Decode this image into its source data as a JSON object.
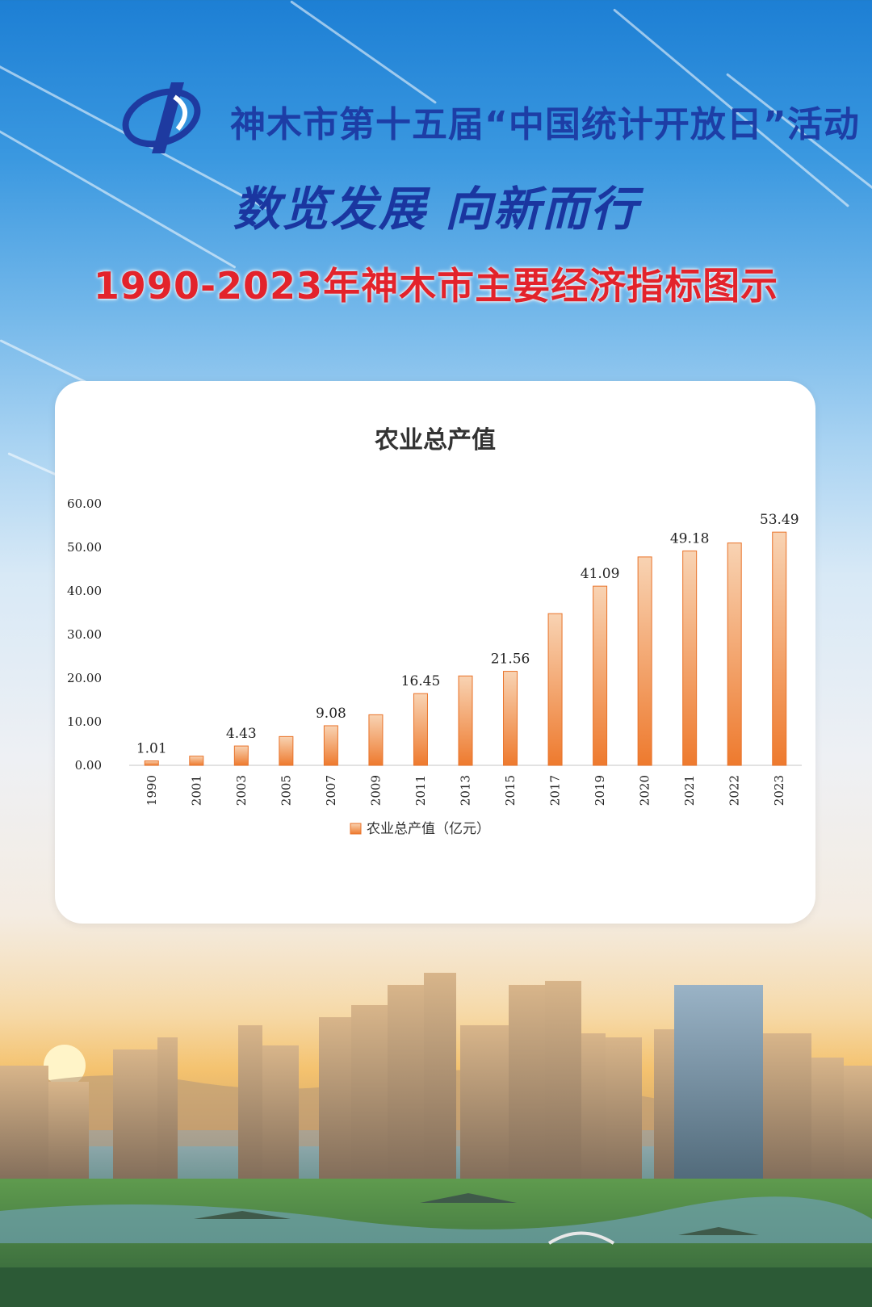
{
  "header": {
    "event_title": "神木市第十五届“中国统计开放日”活动",
    "slogan": "数览发展  向新而行",
    "subtitle": "1990-2023年神木市主要经济指标图示"
  },
  "colors": {
    "bar_top": "#f8d3b3",
    "bar_bottom": "#ee7a2e",
    "title_blue": "#1a36a0",
    "subtitle_red": "#e3232b"
  },
  "chart_data": {
    "type": "bar",
    "title": "农业总产值",
    "categories": [
      "1990",
      "2001",
      "2003",
      "2005",
      "2007",
      "2009",
      "2011",
      "2013",
      "2015",
      "2017",
      "2019",
      "2020",
      "2021",
      "2022",
      "2023"
    ],
    "series": [
      {
        "name": "农业总产值（亿元）",
        "values": [
          1.01,
          2.1,
          4.43,
          6.6,
          9.08,
          11.6,
          16.45,
          20.5,
          21.56,
          34.8,
          41.09,
          47.8,
          49.18,
          51.0,
          53.49
        ]
      }
    ],
    "data_labels": {
      "1990": "1.01",
      "2003": "4.43",
      "2007": "9.08",
      "2011": "16.45",
      "2015": "21.56",
      "2019": "41.09",
      "2021": "49.18",
      "2023": "53.49"
    },
    "yticks": [
      "0.00",
      "10.00",
      "20.00",
      "30.00",
      "40.00",
      "50.00",
      "60.00"
    ],
    "ylim": [
      0,
      60
    ],
    "xlabel": "",
    "ylabel": "",
    "grid": false,
    "legend": "bottom"
  }
}
